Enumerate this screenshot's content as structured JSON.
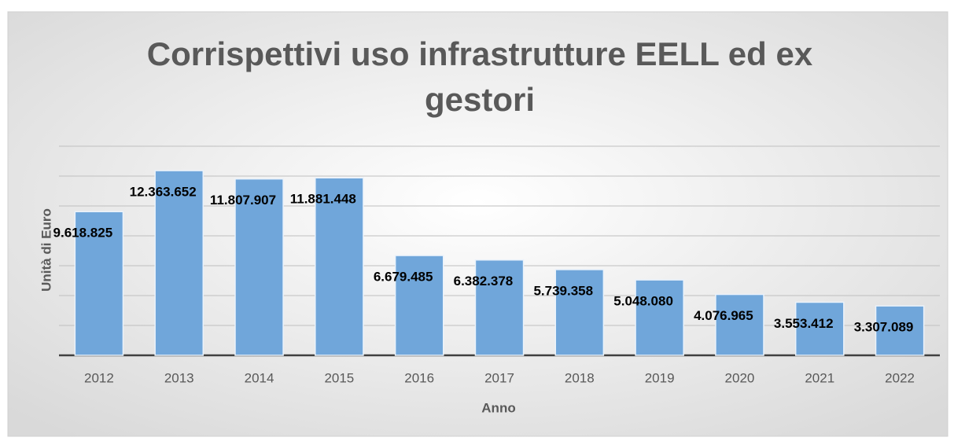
{
  "chart_data": {
    "type": "bar",
    "title": "Corrispettivi uso infrastrutture EELL ed ex gestori",
    "x_label": "Anno",
    "y_label": "Unità di Euro",
    "categories": [
      "2012",
      "2013",
      "2014",
      "2015",
      "2016",
      "2017",
      "2018",
      "2019",
      "2020",
      "2021",
      "2022"
    ],
    "values": [
      9618825,
      12363652,
      11807907,
      11881448,
      6679485,
      6382378,
      5739358,
      5048080,
      4076965,
      3553412,
      3307089
    ],
    "value_labels": [
      "9.618.825",
      "12.363.652",
      "11.807.907",
      "11.881.448",
      "6.679.485",
      "6.382.378",
      "5.739.358",
      "5.048.080",
      "4.076.965",
      "3.553.412",
      "3.307.089"
    ],
    "color": "#70a6da",
    "ylim": [
      0,
      14000000
    ],
    "yticks": [
      0,
      2000000,
      4000000,
      6000000,
      8000000,
      10000000,
      12000000,
      14000000
    ],
    "grid": true
  }
}
